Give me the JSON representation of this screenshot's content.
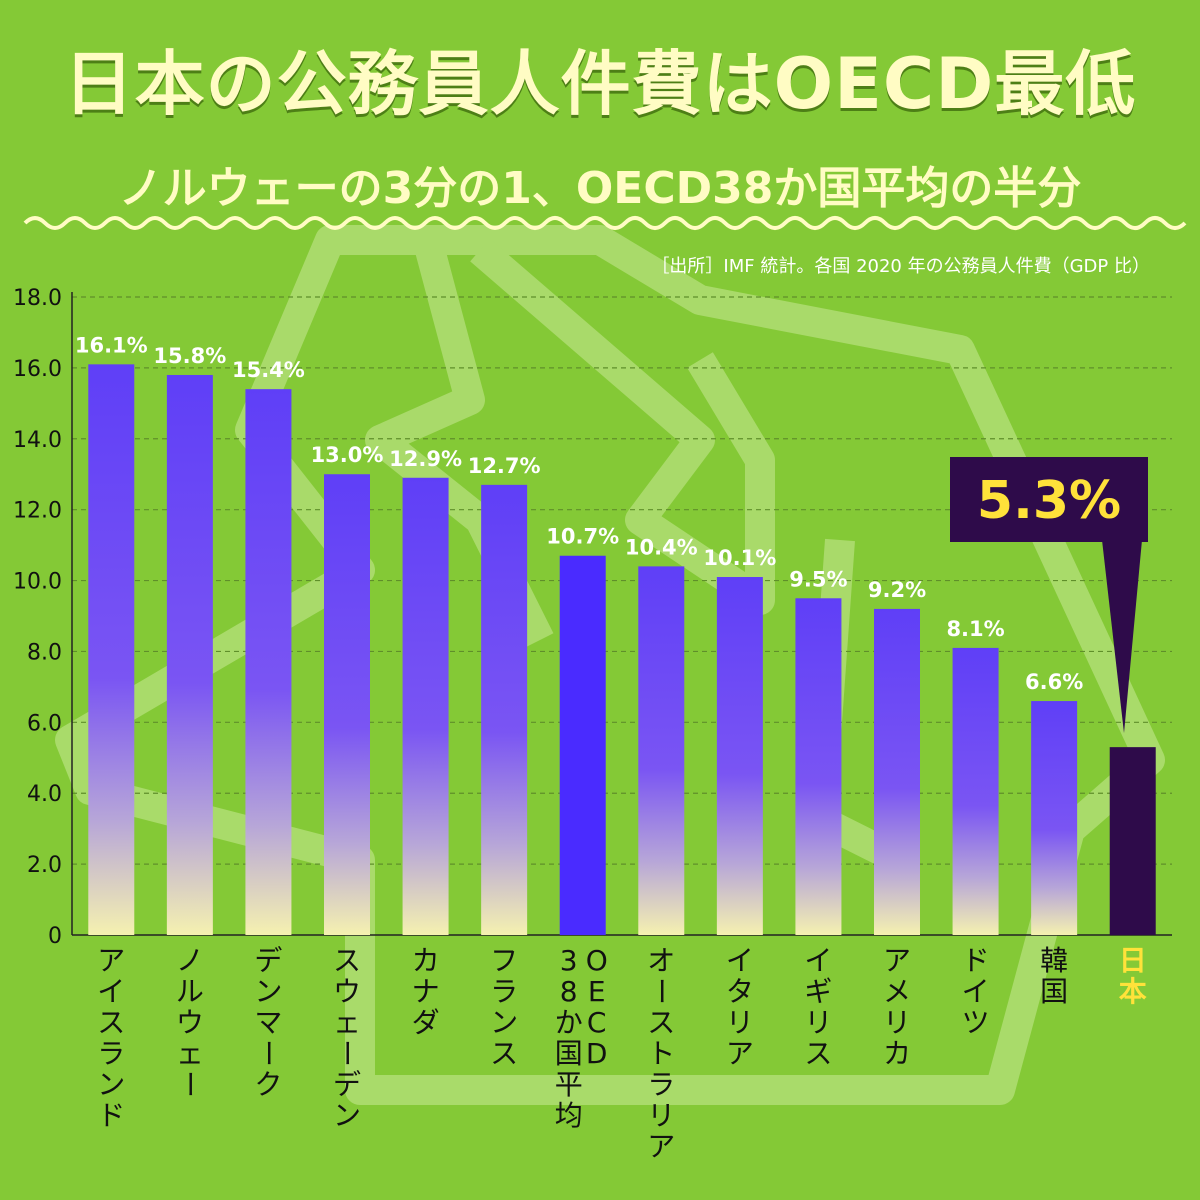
{
  "title": "日本の公務員人件費はOECD最低",
  "subtitle": "ノルウェーの3分の1、OECD38か国平均の半分",
  "source": "［出所］IMF 統計。各国 2020 年の公務員人件費（GDP 比）",
  "callout": "5.3%",
  "colors": {
    "background": "#84c936",
    "bar_top": "#5f3ff7",
    "bar_bottom": "#f5f1b0",
    "oecd_bar": "#4a2bff",
    "japan_bar": "#2e0b4a",
    "title_text": "#fffcc4",
    "japan_label": "#ffe23a"
  },
  "chart_data": {
    "type": "bar",
    "categories": [
      "アイスランド",
      "ノルウェー",
      "デンマーク",
      "スウェーデン",
      "カナダ",
      "フランス",
      "OECD38か国平均",
      "オーストラリア",
      "イタリア",
      "イギリス",
      "アメリカ",
      "ドイツ",
      "韓国",
      "日本"
    ],
    "category_lines": [
      [
        "アイスランド"
      ],
      [
        "ノルウェー"
      ],
      [
        "デンマーク"
      ],
      [
        "スウェーデン"
      ],
      [
        "カナダ"
      ],
      [
        "フランス"
      ],
      [
        "38か国平均",
        "OECD"
      ],
      [
        "オーストラリア"
      ],
      [
        "イタリア"
      ],
      [
        "イギリス"
      ],
      [
        "アメリカ"
      ],
      [
        "ドイツ"
      ],
      [
        "韓国"
      ],
      [
        "日本"
      ]
    ],
    "values": [
      16.1,
      15.8,
      15.4,
      13.0,
      12.9,
      12.7,
      10.7,
      10.4,
      10.1,
      9.5,
      9.2,
      8.1,
      6.6,
      5.3
    ],
    "value_labels": [
      "16.1%",
      "15.8%",
      "15.4%",
      "13.0%",
      "12.9%",
      "12.7%",
      "10.7%",
      "10.4%",
      "10.1%",
      "9.5%",
      "9.2%",
      "8.1%",
      "6.6%",
      ""
    ],
    "highlight": {
      "OECD38か国平均": "oecd",
      "日本": "japan"
    },
    "ylim": [
      0,
      18
    ],
    "yticks": [
      "0",
      "2.0",
      "4.0",
      "6.0",
      "8.0",
      "10.0",
      "12.0",
      "14.0",
      "16.0",
      "18.0"
    ],
    "ytick_values": [
      0,
      2,
      4,
      6,
      8,
      10,
      12,
      14,
      16,
      18
    ],
    "grid": true
  }
}
